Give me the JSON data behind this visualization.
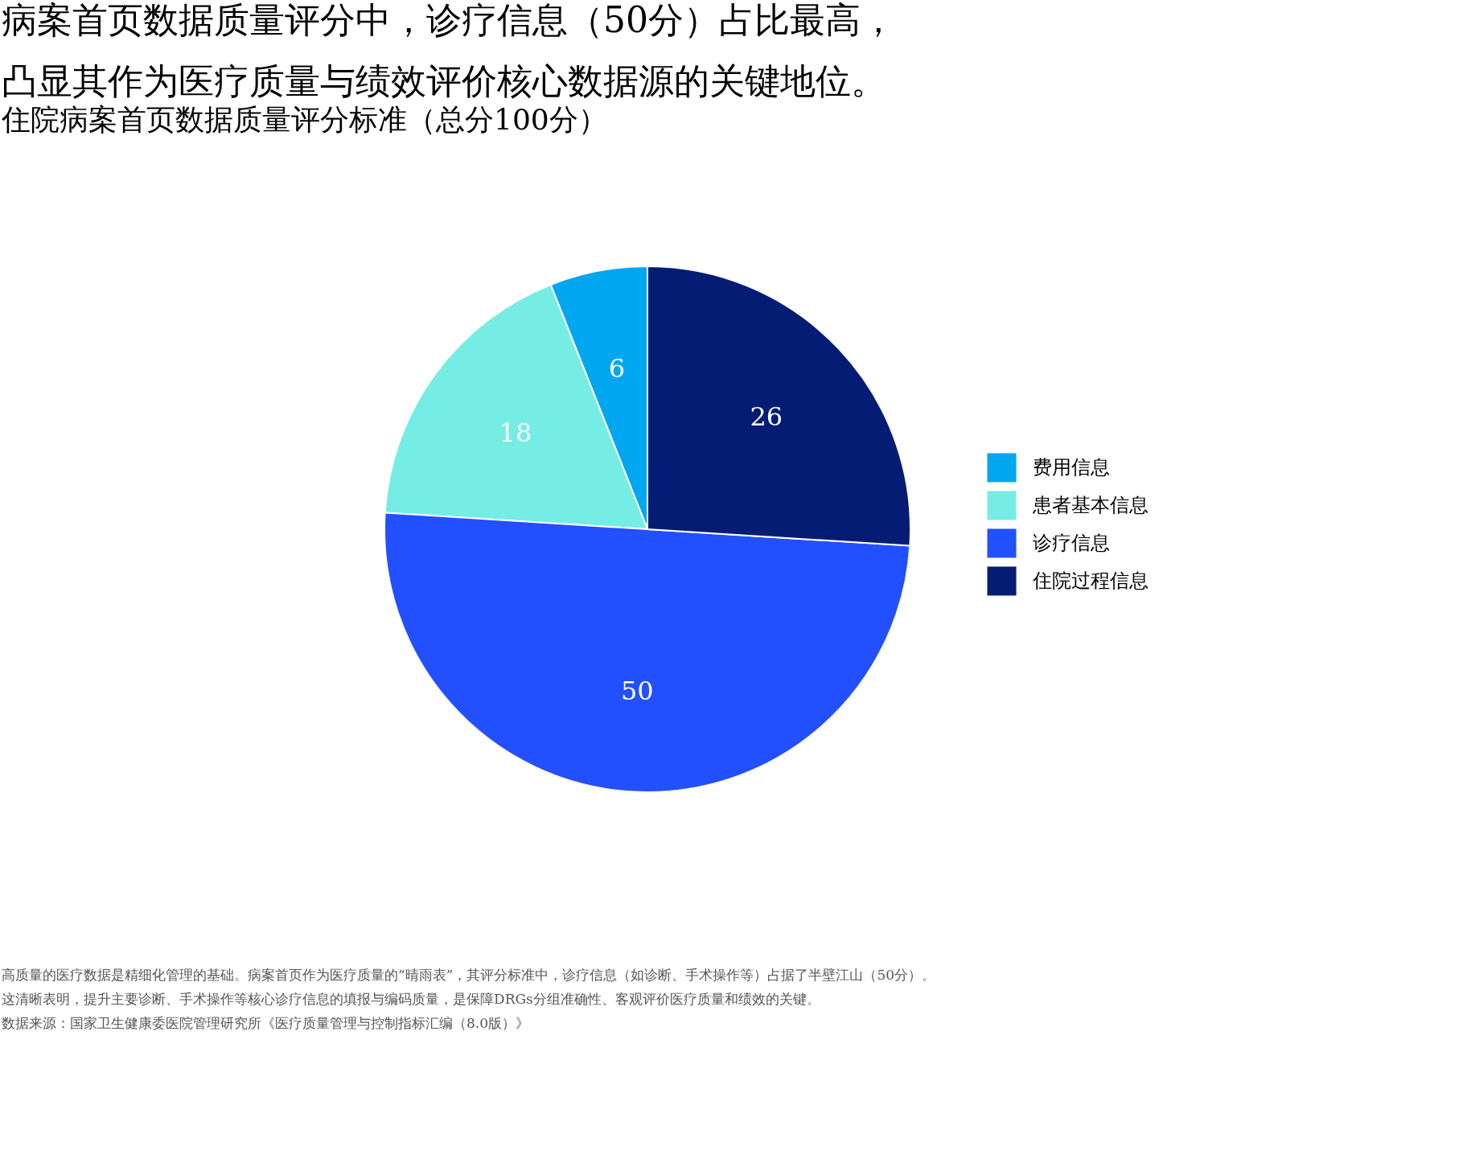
{
  "chart_data": {
    "type": "pie",
    "title": "病案首页数据质量评分中，诊疗信息（50分）占比最高，凸显其作为医疗质量与绩效评价核心数据源的关键地位。",
    "subtitle": "住院病案首页数据质量评分标准（总分100分）",
    "categories": [
      "费用信息",
      "患者基本信息",
      "诊疗信息",
      "住院过程信息"
    ],
    "values": [
      6,
      18,
      50,
      26
    ],
    "colors": [
      "#00a7f0",
      "#76ede4",
      "#2250ff",
      "#051c74"
    ],
    "data_labels": true,
    "legend": "right",
    "annotations": [
      "高质量的医疗数据是精细化管理的基础。病案首页作为医疗质量的“晴雨表”，其评分标准中，诊疗信息（如诊断、手术操作等）占据了半壁江山（50分）。",
      "这清晰表明，提升主要诊断、手术操作等核心诊疗信息的填报与编码质量，是保障DRGs分组准确性、客观评价医疗质量和绩效的关键。",
      "数据来源：国家卫生健康委医院管理研究所《医疗质量管理与控制指标汇编（8.0版）》"
    ]
  }
}
